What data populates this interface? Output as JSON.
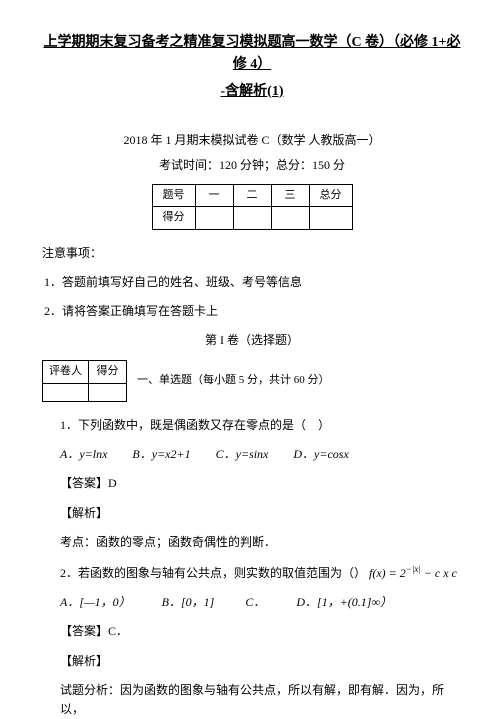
{
  "title_line1": "上学期期末复习备考之精准复习模拟题高一数学（C 卷）（必修 1+必修 4）",
  "title_line2": "-含解析(1)",
  "exam_date": "2018 年 1 月期末模拟试卷 C（数学 人教版高一）",
  "exam_time": "考试时间：120 分钟；总分：150 分",
  "score_table": {
    "header": [
      "题号",
      "一",
      "二",
      "三",
      "总分"
    ],
    "row": [
      "得分",
      "",
      "",
      "",
      ""
    ]
  },
  "note_head": "注意事项：",
  "note1": "1．答题前填写好自己的姓名、班级、考号等信息",
  "note2": "2．请将答案正确填写在答题卡上",
  "section_I": "第 I 卷（选择题）",
  "grader_header": [
    "评卷人",
    "得分"
  ],
  "grader_row": [
    "",
    ""
  ],
  "grader_caption": "一、单选题（每小题 5 分，共计 60 分）",
  "q1_text": "1．下列函数中，既是偶函数又存在零点的是（　）",
  "q1_opts": {
    "A": "A．y=lnx",
    "B": "B．y=x2+1",
    "C": "C．y=sinx",
    "D": "D．y=cosx"
  },
  "q1_ans": "【答案】D",
  "q1_anal": "【解析】",
  "q1_kp": "考点：函数的零点；函数奇偶性的判断．",
  "q2_text_a": "2．若函数的图象与轴有公共点，则实数的取值范围为（）",
  "q2_fx": "f(x) = 2^{−|x|} − c x c",
  "q2_opts": {
    "A": "A．[—1，0）",
    "B": "B．[0，1]",
    "C": "C．",
    "D": "D．[1，+(0.1]∞）"
  },
  "q2_ans": "【答案】C．",
  "q2_anal": "【解析】",
  "q2_expl": "试题分析：因为函数的图象与轴有公共点，所以有解，即有解．因为，所以，"
}
